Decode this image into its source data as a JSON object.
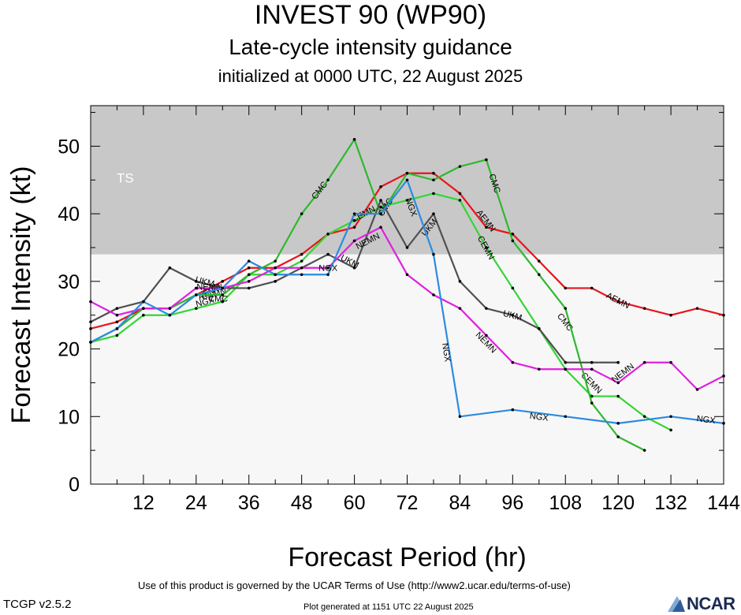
{
  "title": "INVEST 90 (WP90)",
  "subtitle": "Late-cycle intensity guidance",
  "init_line": "initialized at 0000 UTC, 22 August 2025",
  "terms": "Use of this product is governed by the UCAR Terms of Use (http://www2.ucar.edu/terms-of-use)",
  "version": "TCGP v2.5.2",
  "generated": "Plot generated at 1151 UTC   22 August 2025",
  "logo_text": "NCAR",
  "chart_data": {
    "type": "line",
    "xlabel": "Forecast Period (hr)",
    "ylabel": "Forecast Intensity (kt)",
    "xlim": [
      0,
      144
    ],
    "ylim": [
      0,
      56
    ],
    "xticks": [
      12,
      24,
      36,
      48,
      60,
      72,
      84,
      96,
      108,
      120,
      132,
      144
    ],
    "yticks": [
      0,
      10,
      20,
      30,
      40,
      50
    ],
    "bands": [
      {
        "label": "TS",
        "from": 34,
        "to": 56,
        "color": "#c8c8c8"
      }
    ],
    "below_band_color": "#f7f7f7",
    "series": [
      {
        "name": "AEMN",
        "color": "#e8141b",
        "x": [
          0,
          6,
          12,
          18,
          24,
          30,
          36,
          42,
          48,
          54,
          60,
          66,
          72,
          78,
          84,
          90,
          96,
          102,
          108,
          114,
          120,
          126,
          132,
          138,
          144
        ],
        "y": [
          23,
          24,
          26,
          26,
          28,
          30,
          32,
          32,
          34,
          37,
          38,
          44,
          46,
          46,
          43,
          38,
          37,
          33,
          29,
          29,
          27,
          26,
          25,
          26,
          25
        ],
        "labels": [
          {
            "x": 27,
            "y": 28.5
          },
          {
            "x": 90,
            "y": 39
          },
          {
            "x": 120,
            "y": 27.2
          }
        ]
      },
      {
        "name": "CEMN",
        "color": "#33d633",
        "x": [
          0,
          6,
          12,
          18,
          24,
          30,
          36,
          42,
          48,
          54,
          60,
          66,
          72,
          78,
          84,
          90,
          96,
          102,
          108,
          114,
          120,
          126,
          132
        ],
        "y": [
          21,
          22,
          25,
          25,
          26,
          27,
          31,
          31,
          33,
          37,
          39,
          41,
          42,
          43,
          42,
          35,
          29,
          23,
          17,
          13,
          13,
          10,
          8
        ],
        "labels": [
          {
            "x": 28,
            "y": 28.2
          },
          {
            "x": 62,
            "y": 40
          },
          {
            "x": 90,
            "y": 35
          },
          {
            "x": 114,
            "y": 15
          }
        ]
      },
      {
        "name": "CMC",
        "color": "#2eb82e",
        "x": [
          0,
          6,
          12,
          18,
          24,
          30,
          36,
          42,
          48,
          54,
          60,
          66,
          72,
          78,
          84,
          90,
          96,
          102,
          108,
          114,
          120,
          126
        ],
        "y": [
          21,
          23,
          26,
          26,
          28,
          28,
          31,
          33,
          40,
          45,
          51,
          40,
          46,
          45,
          47,
          48,
          36,
          31,
          26,
          12,
          7,
          5
        ],
        "labels": [
          {
            "x": 29,
            "y": 27.5
          },
          {
            "x": 52,
            "y": 43.5
          },
          {
            "x": 67,
            "y": 41
          },
          {
            "x": 92,
            "y": 44.5
          },
          {
            "x": 108,
            "y": 24
          }
        ]
      },
      {
        "name": "UKM",
        "color": "#505050",
        "x": [
          0,
          6,
          12,
          18,
          24,
          30,
          36,
          42,
          48,
          54,
          60,
          66,
          72,
          78,
          84,
          90,
          96,
          102,
          108,
          114,
          120
        ],
        "y": [
          24,
          26,
          27,
          32,
          30,
          29,
          29,
          30,
          32,
          34,
          32,
          42,
          35,
          40,
          30,
          26,
          25,
          23,
          18,
          18,
          18
        ],
        "labels": [
          {
            "x": 26,
            "y": 30
          },
          {
            "x": 59,
            "y": 33
          },
          {
            "x": 77,
            "y": 38
          },
          {
            "x": 96,
            "y": 25
          }
        ]
      },
      {
        "name": "NEMN",
        "color": "#e020e0",
        "x": [
          0,
          6,
          12,
          18,
          24,
          30,
          36,
          42,
          48,
          54,
          60,
          66,
          72,
          78,
          84,
          90,
          96,
          102,
          108,
          114,
          120,
          126,
          132,
          138,
          144
        ],
        "y": [
          27,
          25,
          26,
          26,
          29,
          29,
          30,
          32,
          32,
          32,
          36,
          38,
          31,
          28,
          26,
          22,
          18,
          17,
          17,
          17,
          15,
          18,
          18,
          14,
          16
        ],
        "labels": [
          {
            "x": 27,
            "y": 29.2
          },
          {
            "x": 63,
            "y": 36
          },
          {
            "x": 90,
            "y": 21
          },
          {
            "x": 121,
            "y": 16.5
          }
        ]
      },
      {
        "name": "NGX",
        "color": "#2b8be0",
        "x": [
          0,
          6,
          12,
          18,
          24,
          30,
          36,
          42,
          48,
          54,
          60,
          66,
          72,
          78,
          84,
          96,
          108,
          120,
          132,
          144
        ],
        "y": [
          21,
          23,
          27,
          25,
          28,
          29,
          33,
          31,
          31,
          31,
          40,
          40,
          45,
          34,
          10,
          11,
          10,
          9,
          10,
          9
        ],
        "labels": [
          {
            "x": 26,
            "y": 27
          },
          {
            "x": 54,
            "y": 32
          },
          {
            "x": 73,
            "y": 41
          },
          {
            "x": 81,
            "y": 19.5
          },
          {
            "x": 102,
            "y": 10
          },
          {
            "x": 140,
            "y": 9.6
          }
        ]
      }
    ]
  }
}
